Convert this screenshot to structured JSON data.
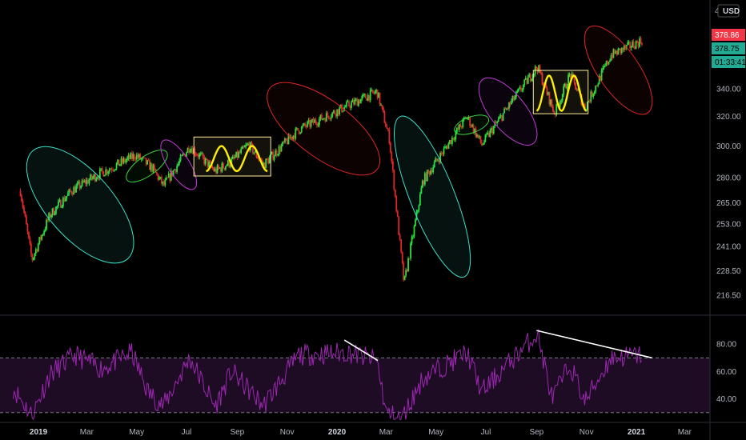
{
  "header": {
    "currency": "USD",
    "currency_prefix": "4"
  },
  "price_tags": [
    {
      "label": "378.86",
      "color": "#f23645",
      "text_color": "#ffffff"
    },
    {
      "label": "378.75",
      "color": "#22ab94",
      "text_color": "#000000"
    },
    {
      "label": "01:33:41",
      "color": "#22ab94",
      "text_color": "#000000"
    }
  ],
  "colors": {
    "up": "#26e03a",
    "down": "#e02626",
    "rsi_line": "#9c27b0",
    "rsi_band": "#1e0b24",
    "ellipse_cyan": "#3ae0c8",
    "ellipse_green": "#3bd43b",
    "ellipse_purple": "#c23ad8",
    "ellipse_red": "#e02626",
    "box": "#ffeb99",
    "wave": "#ffee00"
  },
  "chart_data": [
    {
      "type": "candlestick",
      "x_ticks": [
        "2019",
        "Mar",
        "May",
        "Jul",
        "Sep",
        "Nov",
        "2020",
        "Mar",
        "May",
        "Jul",
        "Sep",
        "Nov",
        "2021",
        "Mar"
      ],
      "bold_ticks": [
        "2019",
        "2020",
        "2021"
      ],
      "y_ticks": [
        216.5,
        228.5,
        241.0,
        253.0,
        265.0,
        280.0,
        300.0,
        320.0,
        340.0
      ],
      "ylim": [
        208,
        410
      ],
      "log_scale": true,
      "grid": false,
      "last_price": 378.86,
      "close_path": [
        {
          "date": "2018-12-10",
          "close": 272
        },
        {
          "date": "2018-12-24",
          "close": 234
        },
        {
          "date": "2019-01-15",
          "close": 258
        },
        {
          "date": "2019-02-10",
          "close": 272
        },
        {
          "date": "2019-03-15",
          "close": 282
        },
        {
          "date": "2019-04-30",
          "close": 294
        },
        {
          "date": "2019-05-20",
          "close": 286
        },
        {
          "date": "2019-06-03",
          "close": 275
        },
        {
          "date": "2019-07-05",
          "close": 300
        },
        {
          "date": "2019-08-05",
          "close": 284
        },
        {
          "date": "2019-08-25",
          "close": 290
        },
        {
          "date": "2019-09-15",
          "close": 301
        },
        {
          "date": "2019-10-03",
          "close": 288
        },
        {
          "date": "2019-11-15",
          "close": 311
        },
        {
          "date": "2020-01-15",
          "close": 328
        },
        {
          "date": "2020-02-19",
          "close": 338
        },
        {
          "date": "2020-03-05",
          "close": 305
        },
        {
          "date": "2020-03-23",
          "close": 222
        },
        {
          "date": "2020-04-15",
          "close": 278
        },
        {
          "date": "2020-06-08",
          "close": 320
        },
        {
          "date": "2020-06-26",
          "close": 301
        },
        {
          "date": "2020-08-01",
          "close": 330
        },
        {
          "date": "2020-09-02",
          "close": 357
        },
        {
          "date": "2020-09-23",
          "close": 322
        },
        {
          "date": "2020-10-12",
          "close": 351
        },
        {
          "date": "2020-10-30",
          "close": 326
        },
        {
          "date": "2020-12-01",
          "close": 366
        },
        {
          "date": "2021-01-08",
          "close": 378
        }
      ],
      "patterns": [
        {
          "kind": "ellipse",
          "color": "cyan",
          "from": "2018-12-20",
          "to": "2019-04-25",
          "low": 232,
          "high": 300
        },
        {
          "kind": "ellipse",
          "color": "green",
          "from": "2019-04-25",
          "to": "2019-06-01",
          "low": 274,
          "high": 301
        },
        {
          "kind": "ellipse",
          "color": "purple",
          "from": "2019-06-01",
          "to": "2019-07-12",
          "low": 272,
          "high": 305
        },
        {
          "kind": "box",
          "from": "2019-07-10",
          "to": "2019-10-12",
          "low": 281,
          "high": 306
        },
        {
          "kind": "ellipse",
          "color": "red",
          "from": "2019-10-05",
          "to": "2020-02-25",
          "low": 283,
          "high": 343
        },
        {
          "kind": "ellipse",
          "color": "cyan",
          "from": "2020-03-15",
          "to": "2020-06-08",
          "low": 222,
          "high": 325
        },
        {
          "kind": "ellipse",
          "color": "green",
          "from": "2020-06-01",
          "to": "2020-06-26",
          "low": 303,
          "high": 326
        },
        {
          "kind": "ellipse",
          "color": "purple",
          "from": "2020-06-24",
          "to": "2020-08-31",
          "low": 300,
          "high": 349
        },
        {
          "kind": "box",
          "from": "2020-08-28",
          "to": "2020-11-03",
          "low": 322,
          "high": 354
        },
        {
          "kind": "ellipse",
          "color": "red",
          "from": "2020-11-01",
          "to": "2021-01-18",
          "low": 320,
          "high": 392
        }
      ],
      "double_waves": [
        {
          "from": "2019-07-25",
          "to": "2019-10-08",
          "top": 300,
          "bottom": 284
        },
        {
          "from": "2020-09-01",
          "to": "2020-11-01",
          "top": 350,
          "bottom": 324
        }
      ]
    },
    {
      "type": "line",
      "indicator": "RSI",
      "y_ticks": [
        40,
        60,
        80
      ],
      "ylim": [
        24,
        100
      ],
      "bands": [
        30,
        70
      ],
      "rsi_path": [
        {
          "date": "2018-12-01",
          "value": 48
        },
        {
          "date": "2018-12-24",
          "value": 28
        },
        {
          "date": "2019-01-15",
          "value": 58
        },
        {
          "date": "2019-02-15",
          "value": 72
        },
        {
          "date": "2019-03-20",
          "value": 62
        },
        {
          "date": "2019-04-25",
          "value": 74
        },
        {
          "date": "2019-05-15",
          "value": 45
        },
        {
          "date": "2019-06-03",
          "value": 35
        },
        {
          "date": "2019-07-05",
          "value": 70
        },
        {
          "date": "2019-08-05",
          "value": 34
        },
        {
          "date": "2019-08-25",
          "value": 60
        },
        {
          "date": "2019-10-03",
          "value": 35
        },
        {
          "date": "2019-11-15",
          "value": 72
        },
        {
          "date": "2020-01-15",
          "value": 74
        },
        {
          "date": "2020-02-19",
          "value": 68
        },
        {
          "date": "2020-03-01",
          "value": 30
        },
        {
          "date": "2020-03-20",
          "value": 25
        },
        {
          "date": "2020-04-15",
          "value": 55
        },
        {
          "date": "2020-06-08",
          "value": 74
        },
        {
          "date": "2020-06-26",
          "value": 45
        },
        {
          "date": "2020-08-01",
          "value": 68
        },
        {
          "date": "2020-09-02",
          "value": 88
        },
        {
          "date": "2020-09-20",
          "value": 40
        },
        {
          "date": "2020-10-12",
          "value": 65
        },
        {
          "date": "2020-10-30",
          "value": 38
        },
        {
          "date": "2020-12-01",
          "value": 70
        },
        {
          "date": "2021-01-08",
          "value": 72
        }
      ],
      "divergence_lines": [
        {
          "from": "2020-01-10",
          "from_value": 83,
          "to": "2020-02-20",
          "to_value": 68
        },
        {
          "from": "2020-09-01",
          "from_value": 90,
          "to": "2021-01-20",
          "to_value": 70
        }
      ]
    }
  ]
}
